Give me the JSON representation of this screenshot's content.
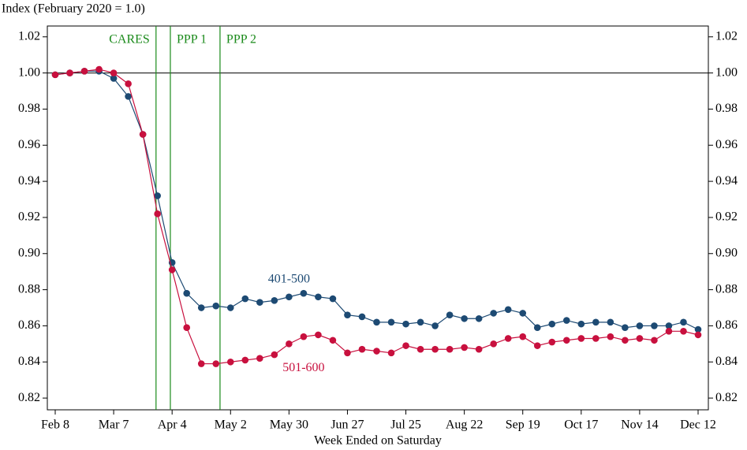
{
  "chart_data": {
    "type": "line",
    "title": "Index (February 2020 = 1.0)",
    "x_label": "Week Ended on Saturday",
    "categories": [
      "Feb 8",
      null,
      null,
      null,
      "Mar 7",
      null,
      null,
      null,
      "Apr 4",
      null,
      null,
      null,
      "May 2",
      null,
      null,
      null,
      "May 30",
      null,
      null,
      null,
      "Jun 27",
      null,
      null,
      null,
      "Jul 25",
      null,
      null,
      null,
      "Aug 22",
      null,
      null,
      null,
      "Sep 19",
      null,
      null,
      null,
      "Oct 17",
      null,
      null,
      null,
      "Nov 14",
      null,
      null,
      null,
      "Dec 12"
    ],
    "series": [
      {
        "name": "401-500",
        "color": "#1d4a73",
        "values": [
          0.999,
          1.0,
          1.001,
          1.001,
          0.997,
          0.987,
          0.966,
          0.932,
          0.895,
          0.878,
          0.87,
          0.871,
          0.87,
          0.875,
          0.873,
          0.874,
          0.876,
          0.878,
          0.876,
          0.875,
          0.866,
          0.865,
          0.862,
          0.862,
          0.861,
          0.862,
          0.86,
          0.866,
          0.864,
          0.864,
          0.867,
          0.869,
          0.867,
          0.859,
          0.861,
          0.863,
          0.861,
          0.862,
          0.862,
          0.859,
          0.86,
          0.86,
          0.86,
          0.862,
          0.858
        ]
      },
      {
        "name": "501-600",
        "color": "#c8103e",
        "values": [
          0.999,
          1.0,
          1.001,
          1.002,
          1.0,
          0.994,
          0.966,
          0.922,
          0.891,
          0.859,
          0.839,
          0.839,
          0.84,
          0.841,
          0.842,
          0.844,
          0.85,
          0.854,
          0.855,
          0.852,
          0.845,
          0.847,
          0.846,
          0.845,
          0.849,
          0.847,
          0.847,
          0.847,
          0.848,
          0.847,
          0.85,
          0.853,
          0.854,
          0.849,
          0.851,
          0.852,
          0.853,
          0.853,
          0.854,
          0.852,
          0.853,
          0.852,
          0.857,
          0.857,
          0.855
        ]
      }
    ],
    "events": [
      {
        "label": "CARES",
        "x": 6.9
      },
      {
        "label": "PPP 1",
        "x": 7.88
      },
      {
        "label": "PPP 2",
        "x": 11.28
      }
    ],
    "event_color": "#1a8a1a",
    "reference_line": 1.0,
    "ylim": [
      0.8135,
      1.026
    ],
    "yticks": [
      {
        "value": 0.82,
        "label": "0.82"
      },
      {
        "value": 0.84,
        "label": "0.84"
      },
      {
        "value": 0.86,
        "label": "0.86"
      },
      {
        "value": 0.88,
        "label": "0.88"
      },
      {
        "value": 0.9,
        "label": "0.90"
      },
      {
        "value": 0.92,
        "label": "0.92"
      },
      {
        "value": 0.94,
        "label": "0.94"
      },
      {
        "value": 0.96,
        "label": "0.96"
      },
      {
        "value": 0.98,
        "label": "0.98"
      },
      {
        "value": 1.0,
        "label": "1.00"
      },
      {
        "value": 1.02,
        "label": "1.02"
      }
    ],
    "right_axis": true
  }
}
